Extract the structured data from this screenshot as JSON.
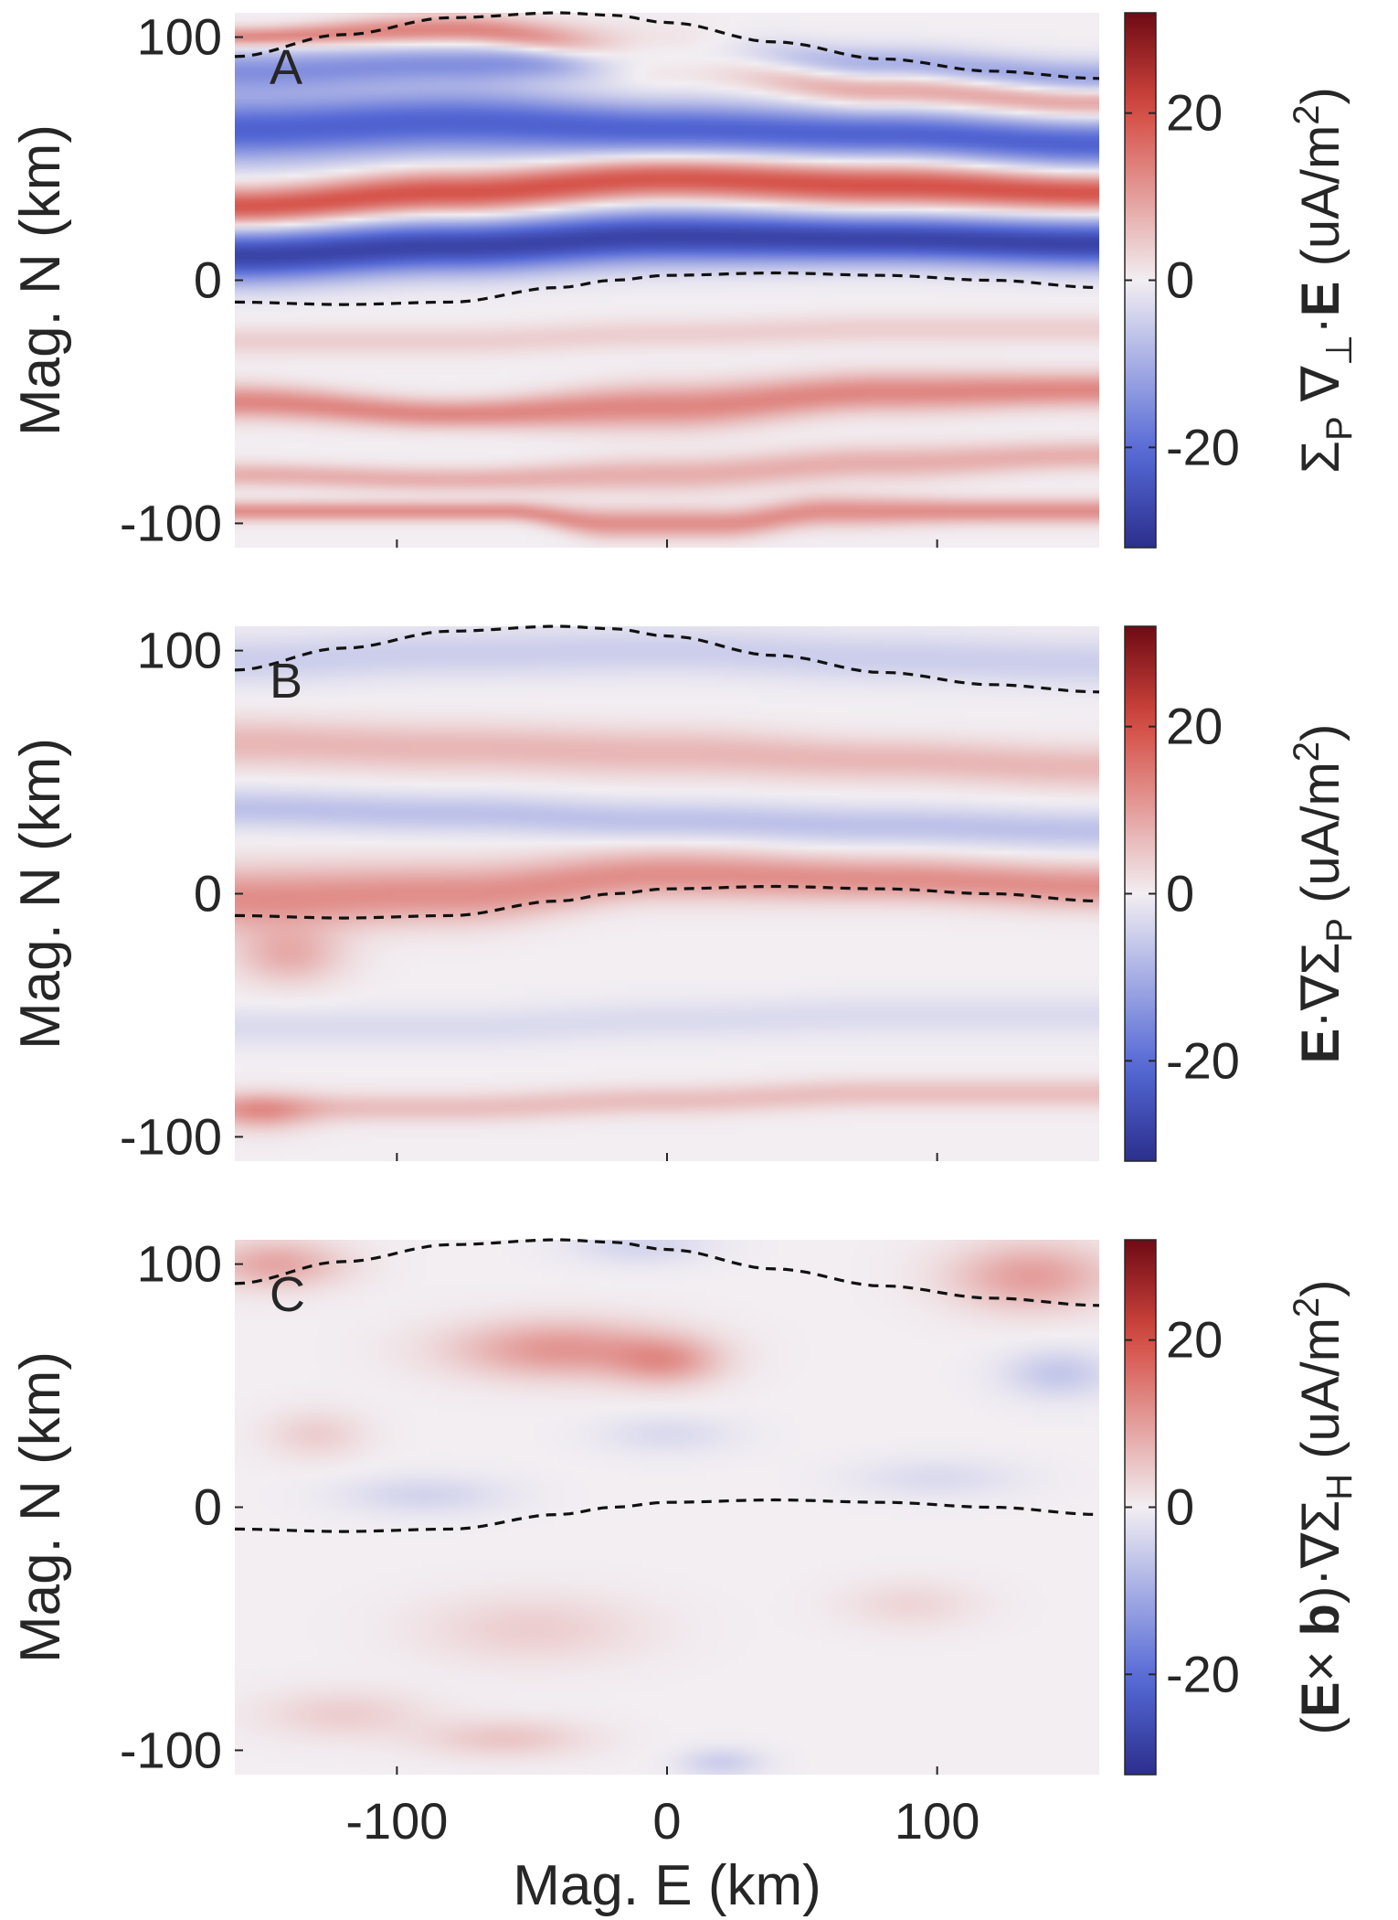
{
  "figure": {
    "xlabel": "Mag. E (km)",
    "x_ticks": [
      -100,
      0,
      100
    ],
    "x_tick_labels": [
      "-100",
      "0",
      "100"
    ]
  },
  "chart_data": [
    {
      "type": "heatmap",
      "panel_label": "A",
      "ylabel": "Mag. N (km)",
      "colorbar_label": "ΣP ∇⊥·E (uA/m²)",
      "colorbar_label_parts": [
        "Σ",
        "P",
        " ∇",
        "⊥",
        "·",
        "E",
        " (uA/m",
        "2",
        ")"
      ],
      "xlim": [
        -160,
        160
      ],
      "ylim": [
        -110,
        110
      ],
      "y_ticks": [
        -100,
        0,
        100
      ],
      "y_tick_labels": [
        "-100",
        "0",
        "100"
      ],
      "clim": [
        -32,
        32
      ],
      "colorbar_ticks": [
        -20,
        0,
        20
      ],
      "colorbar_tick_labels": [
        "-20",
        "0",
        "20"
      ],
      "colormap": {
        "low": "#2c2f8c",
        "mid": "#f2eef2",
        "high": "#6e0a14"
      },
      "boundaries": {
        "x": [
          -160,
          -120,
          -80,
          -40,
          -20,
          0,
          40,
          80,
          120,
          160
        ],
        "north": [
          92,
          101,
          108,
          110,
          109,
          106,
          98,
          91,
          86,
          83
        ],
        "south": [
          -9,
          -10,
          -9,
          -3,
          0,
          2,
          3,
          2,
          0,
          -3
        ]
      },
      "bands": [
        {
          "value": -14,
          "x": [
            -160,
            -80,
            0,
            80,
            160
          ],
          "center": [
            86,
            89,
            92,
            87,
            82
          ],
          "width": [
            9,
            8,
            8,
            8,
            8
          ]
        },
        {
          "value": 14,
          "x": [
            -160,
            -80,
            0,
            80,
            160
          ],
          "center": [
            100,
            103,
            92,
            80,
            74
          ],
          "width": [
            4,
            6,
            9,
            8,
            7
          ]
        },
        {
          "value": -22,
          "x": [
            -160,
            -80,
            0,
            80,
            160
          ],
          "center": [
            62,
            65,
            62,
            60,
            56
          ],
          "width": [
            13,
            13,
            11,
            10,
            10
          ]
        },
        {
          "value": 20,
          "x": [
            -160,
            -80,
            0,
            80,
            160
          ],
          "center": [
            30,
            36,
            42,
            39,
            36
          ],
          "width": [
            8,
            9,
            9,
            9,
            8
          ]
        },
        {
          "value": -28,
          "x": [
            -160,
            -80,
            0,
            80,
            160
          ],
          "center": [
            10,
            14,
            18,
            17,
            15
          ],
          "width": [
            11,
            11,
            11,
            10,
            10
          ]
        },
        {
          "value": 4,
          "x": [
            -160,
            -80,
            0,
            80,
            160
          ],
          "center": [
            -25,
            -25,
            -22,
            -20,
            -20
          ],
          "width": [
            6,
            6,
            6,
            6,
            6
          ]
        },
        {
          "value": 13,
          "x": [
            -160,
            -80,
            0,
            80,
            160
          ],
          "center": [
            -50,
            -55,
            -52,
            -46,
            -45
          ],
          "width": [
            7,
            6,
            9,
            8,
            7
          ]
        },
        {
          "value": 8,
          "x": [
            -160,
            -80,
            0,
            80,
            160
          ],
          "center": [
            -80,
            -82,
            -80,
            -75,
            -72
          ],
          "width": [
            5,
            5,
            7,
            7,
            6
          ]
        },
        {
          "value": 12,
          "x": [
            -60,
            -20,
            20,
            60,
            120
          ],
          "center": [
            -95,
            -100,
            -100,
            -95,
            -95
          ],
          "width": [
            4,
            6,
            6,
            6,
            5
          ]
        }
      ],
      "blobs": []
    },
    {
      "type": "heatmap",
      "panel_label": "B",
      "ylabel": "Mag. N (km)",
      "colorbar_label": "E·∇ΣP (uA/m²)",
      "colorbar_label_parts": [
        "E",
        "·∇Σ",
        "P",
        " (uA/m",
        "2",
        ")"
      ],
      "xlim": [
        -160,
        160
      ],
      "ylim": [
        -110,
        110
      ],
      "y_ticks": [
        -100,
        0,
        100
      ],
      "y_tick_labels": [
        "-100",
        "0",
        "100"
      ],
      "clim": [
        -32,
        32
      ],
      "colorbar_ticks": [
        -20,
        0,
        20
      ],
      "colorbar_tick_labels": [
        "-20",
        "0",
        "20"
      ],
      "colormap": {
        "low": "#2c2f8c",
        "mid": "#f2eef2",
        "high": "#6e0a14"
      },
      "boundaries": {
        "x": [
          -160,
          -120,
          -80,
          -40,
          -20,
          0,
          40,
          80,
          120,
          160
        ],
        "north": [
          92,
          101,
          108,
          110,
          109,
          106,
          98,
          91,
          86,
          83
        ],
        "south": [
          -9,
          -10,
          -9,
          -3,
          0,
          2,
          3,
          2,
          0,
          -3
        ]
      },
      "bands": [
        {
          "value": -5,
          "x": [
            -160,
            -80,
            0,
            80,
            160
          ],
          "center": [
            96,
            99,
            100,
            97,
            95
          ],
          "width": [
            10,
            10,
            10,
            10,
            10
          ]
        },
        {
          "value": 7,
          "x": [
            -160,
            -80,
            0,
            80,
            160
          ],
          "center": [
            62,
            60,
            58,
            55,
            52
          ],
          "width": [
            10,
            10,
            10,
            9,
            9
          ]
        },
        {
          "value": -7,
          "x": [
            -160,
            -80,
            0,
            80,
            160
          ],
          "center": [
            35,
            33,
            30,
            28,
            26
          ],
          "width": [
            8,
            8,
            8,
            8,
            8
          ]
        },
        {
          "value": 12,
          "x": [
            -160,
            -80,
            0,
            80,
            160
          ],
          "center": [
            -2,
            0,
            8,
            6,
            3
          ],
          "width": [
            13,
            12,
            10,
            9,
            9
          ]
        },
        {
          "value": -3,
          "x": [
            -160,
            -80,
            0,
            80,
            160
          ],
          "center": [
            -55,
            -55,
            -52,
            -50,
            -50
          ],
          "width": [
            8,
            8,
            8,
            8,
            8
          ]
        },
        {
          "value": 6,
          "x": [
            -160,
            -80,
            0,
            80,
            160
          ],
          "center": [
            -88,
            -88,
            -85,
            -82,
            -82
          ],
          "width": [
            6,
            6,
            6,
            6,
            6
          ]
        }
      ],
      "blobs": [
        {
          "x": -140,
          "y": -25,
          "rx": 20,
          "ry": 12,
          "value": 8
        },
        {
          "x": -150,
          "y": -90,
          "rx": 18,
          "ry": 8,
          "value": 7
        }
      ]
    },
    {
      "type": "heatmap",
      "panel_label": "C",
      "ylabel": "Mag. N (km)",
      "colorbar_label": "(E× b)·∇ΣH (uA/m²)",
      "colorbar_label_parts": [
        "(",
        "E",
        "× ",
        "b",
        ")·∇Σ",
        "H",
        " (uA/m",
        "2",
        ")"
      ],
      "xlim": [
        -160,
        160
      ],
      "ylim": [
        -110,
        110
      ],
      "y_ticks": [
        -100,
        0,
        100
      ],
      "y_tick_labels": [
        "-100",
        "0",
        "100"
      ],
      "clim": [
        -32,
        32
      ],
      "colorbar_ticks": [
        -20,
        0,
        20
      ],
      "colorbar_tick_labels": [
        "-20",
        "0",
        "20"
      ],
      "colormap": {
        "low": "#2c2f8c",
        "mid": "#f2eef2",
        "high": "#6e0a14"
      },
      "boundaries": {
        "x": [
          -160,
          -120,
          -80,
          -40,
          -20,
          0,
          40,
          80,
          120,
          160
        ],
        "north": [
          92,
          101,
          108,
          110,
          109,
          106,
          98,
          91,
          86,
          83
        ],
        "south": [
          -9,
          -10,
          -9,
          -3,
          0,
          2,
          3,
          2,
          0,
          -3
        ]
      },
      "bands": [],
      "blobs": [
        {
          "x": -145,
          "y": 100,
          "rx": 25,
          "ry": 10,
          "value": 9
        },
        {
          "x": -40,
          "y": 65,
          "rx": 40,
          "ry": 12,
          "value": 11
        },
        {
          "x": 0,
          "y": 60,
          "rx": 20,
          "ry": 10,
          "value": 9
        },
        {
          "x": 135,
          "y": 95,
          "rx": 30,
          "ry": 14,
          "value": 10
        },
        {
          "x": 145,
          "y": 55,
          "rx": 20,
          "ry": 10,
          "value": -6
        },
        {
          "x": -10,
          "y": 108,
          "rx": 25,
          "ry": 8,
          "value": -4
        },
        {
          "x": -130,
          "y": 30,
          "rx": 18,
          "ry": 10,
          "value": 4
        },
        {
          "x": -90,
          "y": 5,
          "rx": 30,
          "ry": 8,
          "value": -4
        },
        {
          "x": 0,
          "y": 30,
          "rx": 25,
          "ry": 8,
          "value": -3
        },
        {
          "x": 100,
          "y": 12,
          "rx": 30,
          "ry": 8,
          "value": -3
        },
        {
          "x": -50,
          "y": -50,
          "rx": 40,
          "ry": 14,
          "value": 4
        },
        {
          "x": -120,
          "y": -85,
          "rx": 30,
          "ry": 10,
          "value": 4
        },
        {
          "x": -60,
          "y": -95,
          "rx": 30,
          "ry": 8,
          "value": 5
        },
        {
          "x": 20,
          "y": -105,
          "rx": 15,
          "ry": 6,
          "value": -5
        },
        {
          "x": 90,
          "y": -40,
          "rx": 25,
          "ry": 10,
          "value": 3
        }
      ]
    }
  ]
}
